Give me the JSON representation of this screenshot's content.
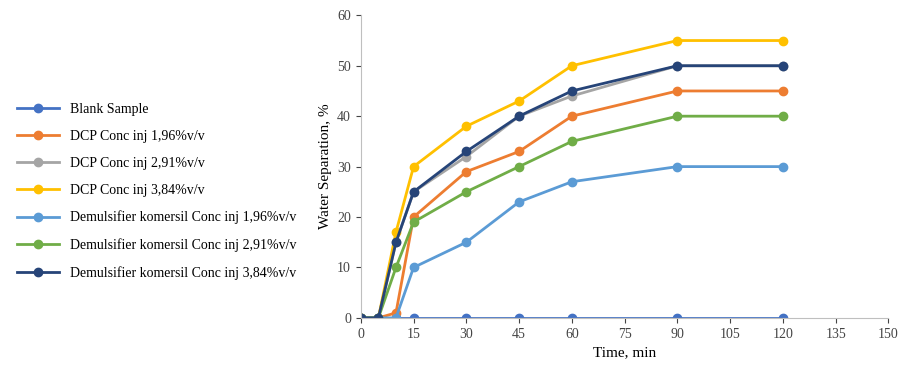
{
  "chart_data": {
    "type": "line",
    "x_label": "Time, min",
    "y_label": "Water Separation, %",
    "xlim": [
      0,
      150
    ],
    "xticks": [
      0,
      15,
      30,
      45,
      60,
      75,
      90,
      105,
      120,
      135,
      150
    ],
    "ylim": [
      0,
      60
    ],
    "yticks": [
      0,
      10,
      20,
      30,
      40,
      50,
      60
    ],
    "grid": false,
    "legend": "left",
    "marker": "circle",
    "x": [
      0,
      5,
      10,
      15,
      30,
      45,
      60,
      90,
      120
    ],
    "series": [
      {
        "name": "Blank Sample",
        "color": "#4472c4",
        "values": [
          0,
          0,
          0,
          0,
          0,
          0,
          0,
          0,
          0
        ]
      },
      {
        "name": "DCP Conc inj 1,96%v/v",
        "color": "#ed7d31",
        "values": [
          0,
          0,
          1,
          20,
          29,
          33,
          40,
          45,
          45
        ]
      },
      {
        "name": "DCP Conc inj 2,91%v/v",
        "color": "#a5a5a5",
        "values": [
          0,
          0,
          15,
          25,
          32,
          40,
          44,
          50,
          50
        ]
      },
      {
        "name": "DCP Conc inj 3,84%v/v",
        "color": "#ffc000",
        "values": [
          0,
          0,
          17,
          30,
          38,
          43,
          50,
          55,
          55
        ]
      },
      {
        "name": "Demulsifier komersil Conc inj 1,96%v/v",
        "color": "#5b9bd5",
        "values": [
          0,
          0,
          0,
          10,
          15,
          23,
          27,
          30,
          30
        ]
      },
      {
        "name": "Demulsifier komersil Conc inj 2,91%v/v",
        "color": "#70ad47",
        "values": [
          0,
          0,
          10,
          19,
          25,
          30,
          35,
          40,
          40
        ]
      },
      {
        "name": "Demulsifier komersil Conc inj 3,84%v/v",
        "color": "#264478",
        "values": [
          0,
          0,
          15,
          25,
          33,
          40,
          45,
          50,
          50
        ]
      }
    ]
  }
}
